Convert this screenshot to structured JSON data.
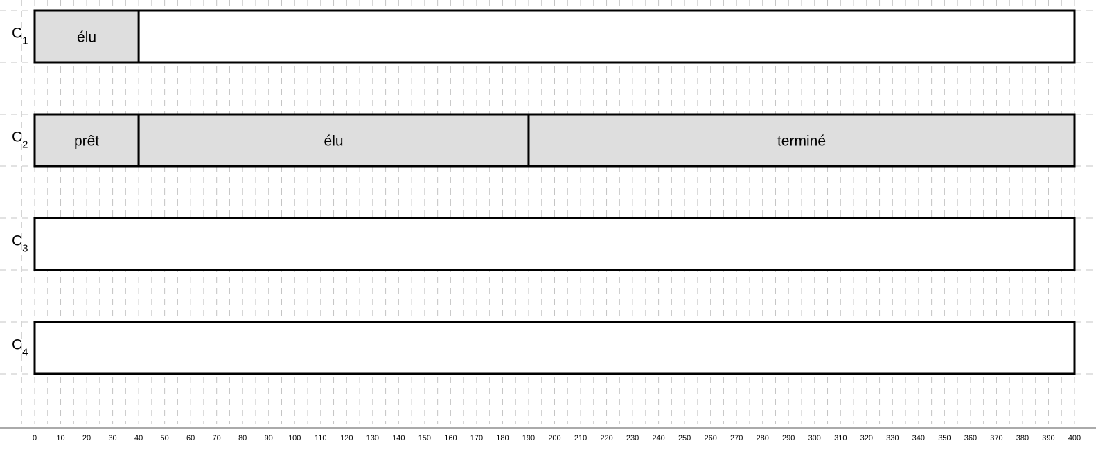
{
  "chart_data": {
    "type": "gantt",
    "title": "",
    "xlabel": "",
    "ylabel": "",
    "xlim": [
      0,
      400
    ],
    "x_ticks": [
      0,
      10,
      20,
      30,
      40,
      50,
      60,
      70,
      80,
      90,
      100,
      110,
      120,
      130,
      140,
      150,
      160,
      170,
      180,
      190,
      200,
      210,
      220,
      230,
      240,
      250,
      260,
      270,
      280,
      290,
      300,
      310,
      320,
      330,
      340,
      350,
      360,
      370,
      380,
      390,
      400
    ],
    "grid": true,
    "segment_fill": "#dedede",
    "rows": [
      {
        "label": "C",
        "index": "1",
        "segments": [
          {
            "start": 0,
            "end": 40,
            "label": "élu"
          }
        ]
      },
      {
        "label": "C",
        "index": "2",
        "segments": [
          {
            "start": 0,
            "end": 40,
            "label": "prêt"
          },
          {
            "start": 40,
            "end": 190,
            "label": "élu"
          },
          {
            "start": 190,
            "end": 400,
            "label": "terminé"
          }
        ]
      },
      {
        "label": "C",
        "index": "3",
        "segments": []
      },
      {
        "label": "C",
        "index": "4",
        "segments": []
      }
    ]
  }
}
